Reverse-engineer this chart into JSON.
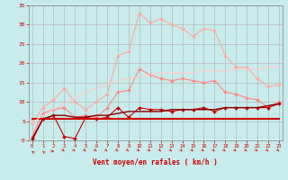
{
  "x": [
    0,
    1,
    2,
    3,
    4,
    5,
    6,
    7,
    8,
    9,
    10,
    11,
    12,
    13,
    14,
    15,
    16,
    17,
    18,
    19,
    20,
    21,
    22,
    23
  ],
  "series": [
    {
      "name": "rafales_max",
      "color": "#ffaaaa",
      "marker": "D",
      "markersize": 2,
      "linewidth": 0.8,
      "values": [
        4.5,
        8.5,
        10.5,
        13.5,
        10.0,
        8.0,
        10.0,
        12.0,
        22.0,
        23.0,
        33.0,
        30.5,
        31.5,
        30.0,
        29.0,
        27.0,
        29.0,
        28.5,
        22.0,
        19.0,
        19.0,
        16.0,
        14.0,
        14.5
      ]
    },
    {
      "name": "rafales_moy",
      "color": "#ff8888",
      "marker": "D",
      "markersize": 2,
      "linewidth": 0.8,
      "values": [
        1.0,
        7.0,
        8.0,
        8.5,
        6.0,
        6.5,
        6.0,
        8.5,
        12.5,
        13.0,
        18.5,
        17.0,
        16.0,
        15.5,
        16.0,
        15.5,
        15.0,
        15.5,
        12.5,
        12.0,
        11.0,
        10.5,
        8.5,
        10.0
      ]
    },
    {
      "name": "vent_max",
      "color": "#cc0000",
      "marker": "D",
      "markersize": 2,
      "linewidth": 0.8,
      "values": [
        0.5,
        5.5,
        6.5,
        1.0,
        0.5,
        6.0,
        5.5,
        6.0,
        8.5,
        6.0,
        8.5,
        8.0,
        8.0,
        7.5,
        8.0,
        8.0,
        8.5,
        7.5,
        8.5,
        8.5,
        8.5,
        8.5,
        8.5,
        9.5
      ]
    },
    {
      "name": "vent_moy_flat1",
      "color": "#cc0000",
      "marker": null,
      "linewidth": 1.5,
      "values": [
        5.5,
        5.5,
        5.5,
        5.5,
        5.5,
        5.5,
        5.5,
        5.5,
        5.5,
        5.5,
        5.5,
        5.5,
        5.5,
        5.5,
        5.5,
        5.5,
        5.5,
        5.5,
        5.5,
        5.5,
        5.5,
        5.5,
        5.5,
        5.5
      ]
    },
    {
      "name": "vent_moy_flat2",
      "color": "#880000",
      "marker": null,
      "linewidth": 1.0,
      "values": [
        0.0,
        5.5,
        6.5,
        6.5,
        6.0,
        6.0,
        6.5,
        6.5,
        7.0,
        7.5,
        7.5,
        7.5,
        7.5,
        8.0,
        8.0,
        8.0,
        8.0,
        8.0,
        8.5,
        8.5,
        8.5,
        8.5,
        9.0,
        9.5
      ]
    },
    {
      "name": "rafales_trend",
      "color": "#ffcccc",
      "marker": null,
      "linewidth": 0.8,
      "values": [
        4.5,
        6.5,
        8.0,
        9.5,
        11.0,
        12.5,
        13.5,
        14.5,
        15.5,
        16.0,
        16.5,
        17.0,
        17.5,
        17.5,
        17.5,
        17.5,
        18.0,
        18.0,
        18.0,
        18.5,
        18.5,
        18.5,
        19.0,
        19.0
      ]
    }
  ],
  "xlim": [
    -0.3,
    23.3
  ],
  "ylim": [
    0,
    35
  ],
  "yticks": [
    0,
    5,
    10,
    15,
    20,
    25,
    30,
    35
  ],
  "xticks": [
    0,
    1,
    2,
    3,
    4,
    5,
    6,
    7,
    8,
    9,
    10,
    11,
    12,
    13,
    14,
    15,
    16,
    17,
    18,
    19,
    20,
    21,
    22,
    23
  ],
  "xlabel": "Vent moyen/en rafales ( km/h )",
  "bg_color": "#c8ebeb",
  "grid_color": "#b0b0b0",
  "tick_color": "#cc0000",
  "label_color": "#cc0000",
  "arrow_angles": [
    225,
    225,
    90,
    45,
    45,
    45,
    45,
    45,
    45,
    45,
    45,
    45,
    45,
    45,
    45,
    45,
    45,
    45,
    45,
    45,
    45,
    45,
    45,
    45
  ]
}
